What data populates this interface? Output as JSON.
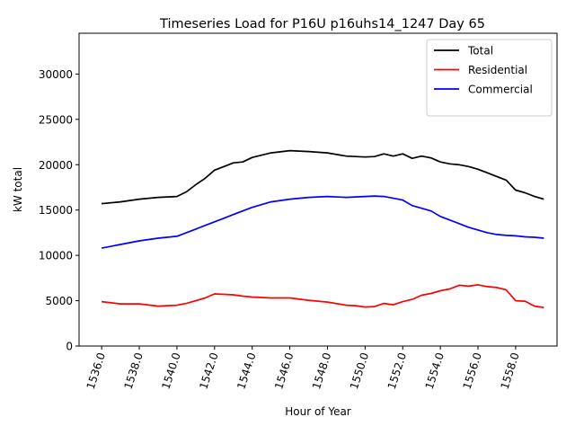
{
  "chart_data": {
    "type": "line",
    "title": "Timeseries Load for P16U p16uhs14_1247  Day 65",
    "xlabel": "Hour of Year",
    "ylabel": "kW total",
    "xlim": [
      1534.8,
      1560.2
    ],
    "ylim": [
      0,
      34500
    ],
    "x_ticks": [
      1536,
      1538,
      1540,
      1542,
      1544,
      1546,
      1548,
      1550,
      1552,
      1554,
      1556,
      1558
    ],
    "x_tick_labels": [
      "1536.0",
      "1538.0",
      "1540.0",
      "1542.0",
      "1544.0",
      "1546.0",
      "1548.0",
      "1550.0",
      "1552.0",
      "1554.0",
      "1556.0",
      "1558.0"
    ],
    "y_ticks": [
      0,
      5000,
      10000,
      15000,
      20000,
      25000,
      30000
    ],
    "y_tick_labels": [
      "0",
      "5000",
      "10000",
      "15000",
      "20000",
      "25000",
      "30000"
    ],
    "legend_position": "top-right",
    "series": [
      {
        "name": "Total",
        "color": "#000000",
        "x": [
          1536.0,
          1537.0,
          1538.0,
          1539.0,
          1540.0,
          1540.5,
          1541.0,
          1541.5,
          1542.0,
          1542.5,
          1543.0,
          1543.5,
          1544.0,
          1545.0,
          1546.0,
          1547.0,
          1548.0,
          1549.0,
          1550.0,
          1550.5,
          1551.0,
          1551.5,
          1552.0,
          1552.5,
          1553.0,
          1553.5,
          1554.0,
          1554.5,
          1555.0,
          1555.5,
          1556.0,
          1556.5,
          1557.0,
          1557.5,
          1558.0,
          1558.5,
          1559.0,
          1559.5
        ],
        "y": [
          15700,
          15900,
          16200,
          16400,
          16500,
          17000,
          17800,
          18500,
          19400,
          19800,
          20200,
          20300,
          20800,
          21300,
          21550,
          21450,
          21300,
          20950,
          20850,
          20900,
          21200,
          20950,
          21200,
          20700,
          20950,
          20750,
          20300,
          20100,
          20000,
          19800,
          19500,
          19100,
          18700,
          18300,
          17200,
          16900,
          16500,
          16200
        ]
      },
      {
        "name": "Residential",
        "color": "#ff0000",
        "x": [
          1536.0,
          1537.0,
          1538.0,
          1539.0,
          1540.0,
          1540.5,
          1541.0,
          1541.5,
          1542.0,
          1542.5,
          1543.0,
          1543.5,
          1544.0,
          1545.0,
          1546.0,
          1547.0,
          1548.0,
          1549.0,
          1549.5,
          1550.0,
          1550.5,
          1551.0,
          1551.5,
          1552.0,
          1552.5,
          1553.0,
          1553.5,
          1554.0,
          1554.5,
          1555.0,
          1555.5,
          1556.0,
          1556.5,
          1557.0,
          1557.5,
          1558.0,
          1558.5,
          1559.0,
          1559.5
        ],
        "y": [
          4900,
          4650,
          4650,
          4400,
          4500,
          4700,
          5000,
          5300,
          5750,
          5700,
          5650,
          5500,
          5400,
          5300,
          5300,
          5050,
          4850,
          4500,
          4450,
          4300,
          4350,
          4700,
          4550,
          4900,
          5150,
          5600,
          5800,
          6100,
          6300,
          6700,
          6600,
          6750,
          6550,
          6450,
          6200,
          5000,
          4950,
          4400,
          4250
        ]
      },
      {
        "name": "Commercial",
        "color": "#0000ff",
        "x": [
          1536.0,
          1537.0,
          1538.0,
          1539.0,
          1540.0,
          1540.5,
          1541.0,
          1541.5,
          1542.0,
          1542.5,
          1543.0,
          1543.5,
          1544.0,
          1545.0,
          1546.0,
          1547.0,
          1548.0,
          1549.0,
          1550.0,
          1550.5,
          1551.0,
          1551.5,
          1552.0,
          1552.5,
          1553.0,
          1553.5,
          1554.0,
          1554.5,
          1555.0,
          1555.5,
          1556.0,
          1556.5,
          1557.0,
          1557.5,
          1558.0,
          1558.5,
          1559.0,
          1559.5
        ],
        "y": [
          10800,
          11200,
          11600,
          11900,
          12100,
          12500,
          12900,
          13300,
          13700,
          14100,
          14500,
          14900,
          15300,
          15900,
          16200,
          16400,
          16500,
          16400,
          16500,
          16550,
          16500,
          16300,
          16100,
          15500,
          15200,
          14900,
          14300,
          13900,
          13500,
          13100,
          12800,
          12500,
          12300,
          12200,
          12150,
          12050,
          12000,
          11900
        ]
      }
    ]
  }
}
